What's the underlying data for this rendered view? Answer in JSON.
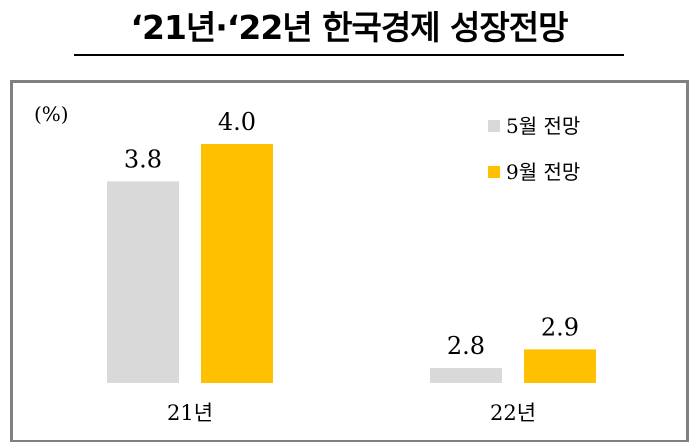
{
  "chart_data": {
    "type": "bar",
    "title": "‘21년·‘22년 한국경제 성장전망",
    "unit_label": "(%)",
    "categories": [
      "21년",
      "22년"
    ],
    "series": [
      {
        "name": "5월 전망",
        "color": "#d9d9d9",
        "values": [
          3.8,
          2.8
        ],
        "labels": [
          "3.8",
          "2.8"
        ]
      },
      {
        "name": "9월 전망",
        "color": "#ffc000",
        "values": [
          4.0,
          2.9
        ],
        "labels": [
          "4.0",
          "2.9"
        ]
      }
    ],
    "ylim": [
      2.72,
      4.0
    ],
    "grid": false,
    "legend": "top-right"
  }
}
